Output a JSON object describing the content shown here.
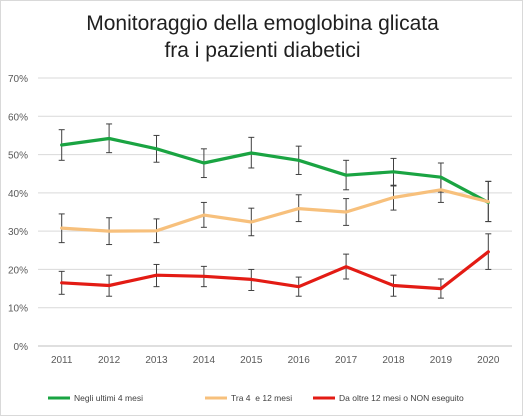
{
  "chart_data": {
    "type": "line",
    "title_line1": "Monitoraggio della emoglobina glicata",
    "title_line2": "fra i pazienti diabetici",
    "x": [
      "2011",
      "2012",
      "2013",
      "2014",
      "2015",
      "2016",
      "2017",
      "2018",
      "2019",
      "2020"
    ],
    "ylim": [
      0,
      70
    ],
    "yticks": [
      0,
      10,
      20,
      30,
      40,
      50,
      60,
      70
    ],
    "ytick_labels": [
      "0%",
      "10%",
      "20%",
      "30%",
      "40%",
      "50%",
      "60%",
      "70%"
    ],
    "grid": true,
    "legend_position": "bottom",
    "error_bars": true,
    "series": [
      {
        "name": "Negli ultimi 4 mesi",
        "color": "#1aa442",
        "values": [
          52.5,
          54.2,
          51.5,
          47.8,
          50.4,
          48.5,
          44.6,
          45.5,
          44.1,
          37.5
        ],
        "err_low": [
          48.5,
          50.5,
          48.0,
          44.0,
          46.5,
          44.8,
          40.8,
          41.8,
          40.2,
          32.5
        ],
        "err_high": [
          56.5,
          58.0,
          55.0,
          51.5,
          54.5,
          52.2,
          48.5,
          49.0,
          47.8,
          43.0
        ]
      },
      {
        "name": "Tra 4  e 12 mesi",
        "color": "#f7c07c",
        "values": [
          30.8,
          30.0,
          30.1,
          34.2,
          32.4,
          35.9,
          35.0,
          38.8,
          40.8,
          37.7
        ],
        "err_low": [
          27.0,
          26.5,
          27.0,
          31.0,
          28.8,
          32.5,
          31.5,
          35.5,
          37.5,
          32.5
        ],
        "err_high": [
          34.5,
          33.5,
          33.2,
          37.5,
          36.0,
          39.5,
          38.5,
          42.0,
          44.0,
          43.0
        ]
      },
      {
        "name": "Da oltre 12 mesi o NON eseguito",
        "color": "#e31b14",
        "values": [
          16.5,
          15.8,
          18.5,
          18.2,
          17.4,
          15.5,
          20.7,
          15.8,
          15.0,
          24.6
        ],
        "err_low": [
          13.5,
          13.0,
          15.5,
          15.5,
          14.5,
          13.0,
          17.5,
          13.0,
          12.5,
          20.0
        ],
        "err_high": [
          19.5,
          18.5,
          21.3,
          20.8,
          20.0,
          18.0,
          24.0,
          18.5,
          17.5,
          29.3
        ]
      }
    ]
  }
}
